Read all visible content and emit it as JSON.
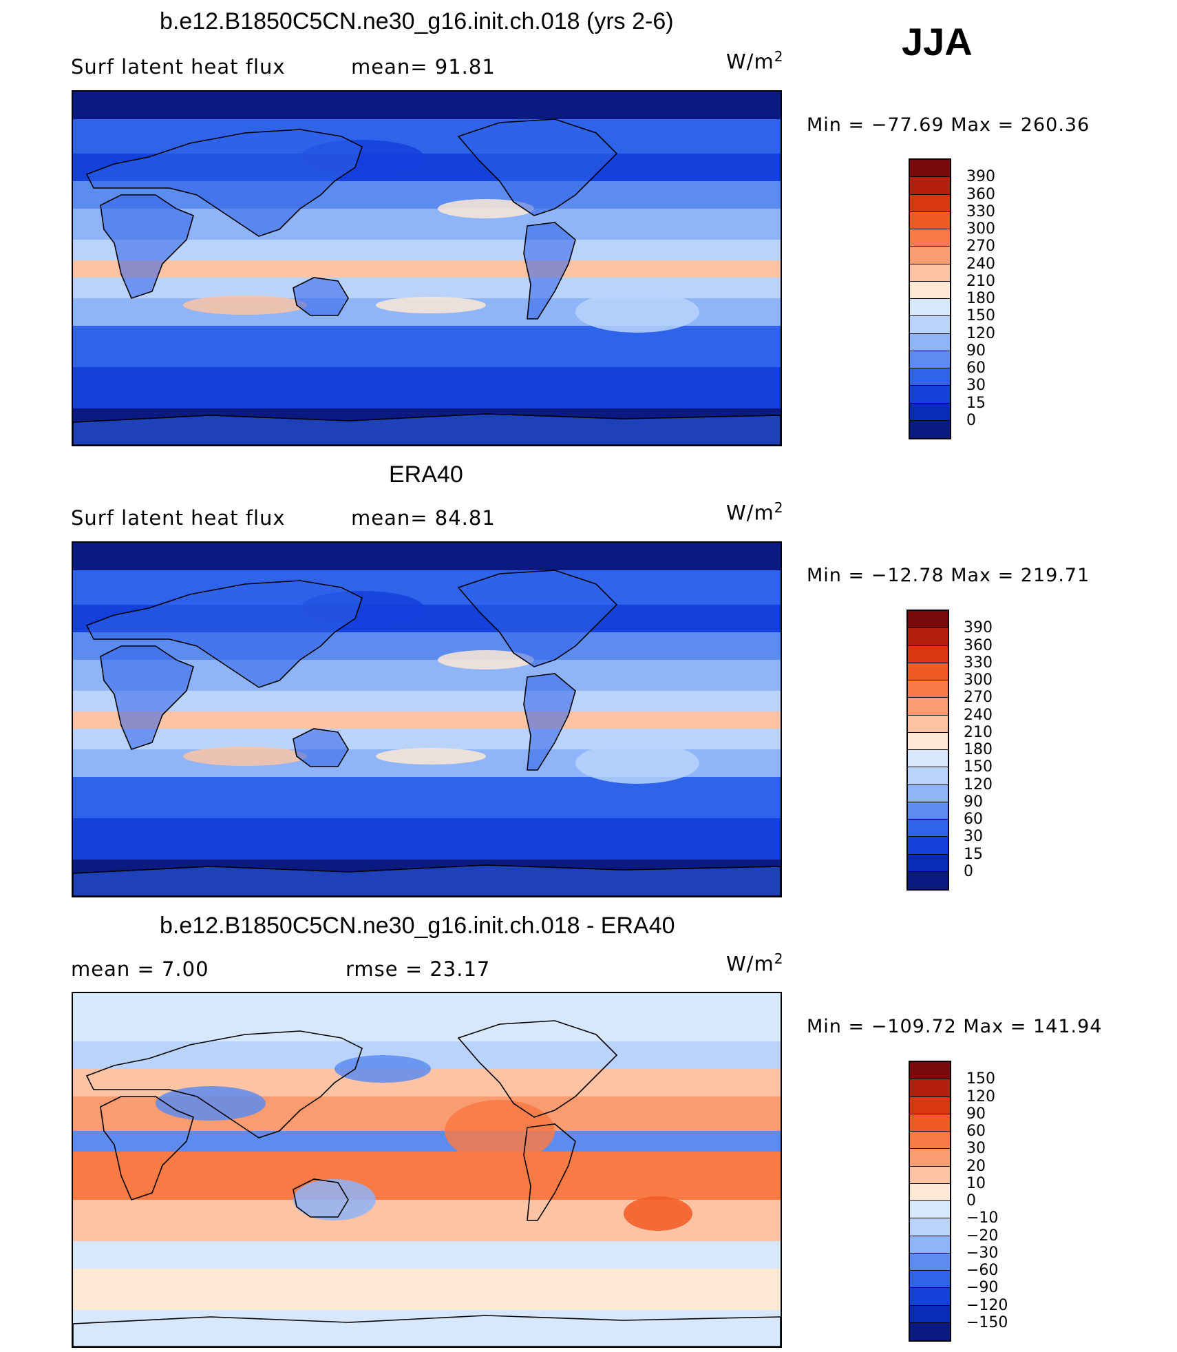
{
  "season": "JJA",
  "panels": [
    {
      "title": "b.e12.B1850C5CN.ne30_g16.init.ch.018 (yrs 2-6)",
      "left_label": "Surf  latent  heat  flux",
      "mid_label": "mean=   91.81",
      "units": "W/m",
      "units_sup": "2",
      "minmax": "Min  =  −77.69  Max  =  260.36",
      "colorbar": {
        "labels": [
          "390",
          "360",
          "330",
          "300",
          "270",
          "240",
          "210",
          "180",
          "150",
          "120",
          "90",
          "60",
          "30",
          "15",
          "0"
        ],
        "colors": [
          "#7a0a0a",
          "#b3200f",
          "#d93712",
          "#f25a24",
          "#f87a45",
          "#f99c6f",
          "#fcc4a4",
          "#fde8d6",
          "#d7e8fb",
          "#b9d3fb",
          "#8fb4f7",
          "#5d8cf0",
          "#2f63ea",
          "#1440dc",
          "#0a2bb8",
          "#0a1a80"
        ]
      },
      "map_palette": "flux"
    },
    {
      "title": "ERA40",
      "left_label": "Surf  latent  heat  flux",
      "mid_label": "mean=   84.81",
      "units": "W/m",
      "units_sup": "2",
      "minmax": "Min  =  −12.78  Max  =  219.71",
      "colorbar": {
        "labels": [
          "390",
          "360",
          "330",
          "300",
          "270",
          "240",
          "210",
          "180",
          "150",
          "120",
          "90",
          "60",
          "30",
          "15",
          "0"
        ],
        "colors": [
          "#7a0a0a",
          "#b3200f",
          "#d93712",
          "#f25a24",
          "#f87a45",
          "#f99c6f",
          "#fcc4a4",
          "#fde8d6",
          "#d7e8fb",
          "#b9d3fb",
          "#8fb4f7",
          "#5d8cf0",
          "#2f63ea",
          "#1440dc",
          "#0a2bb8",
          "#0a1a80"
        ]
      },
      "map_palette": "flux"
    },
    {
      "title": "b.e12.B1850C5CN.ne30_g16.init.ch.018 - ERA40",
      "left_label": "mean  =     7.00",
      "mid_label": "rmse  =    23.17",
      "units": "W/m",
      "units_sup": "2",
      "minmax": "Min  =  −109.72  Max  =  141.94",
      "colorbar": {
        "labels": [
          "150",
          "120",
          "90",
          "60",
          "30",
          "20",
          "10",
          "0",
          "−10",
          "−20",
          "−30",
          "−60",
          "−90",
          "−120",
          "−150"
        ],
        "colors": [
          "#7a0a0a",
          "#b3200f",
          "#d93712",
          "#f25a24",
          "#f87a45",
          "#f99c6f",
          "#fcc4a4",
          "#fde8d6",
          "#d7e8fb",
          "#b9d3fb",
          "#8fb4f7",
          "#5d8cf0",
          "#2f63ea",
          "#1440dc",
          "#0a2bb8",
          "#0a1a80"
        ]
      },
      "map_palette": "diff"
    }
  ]
}
